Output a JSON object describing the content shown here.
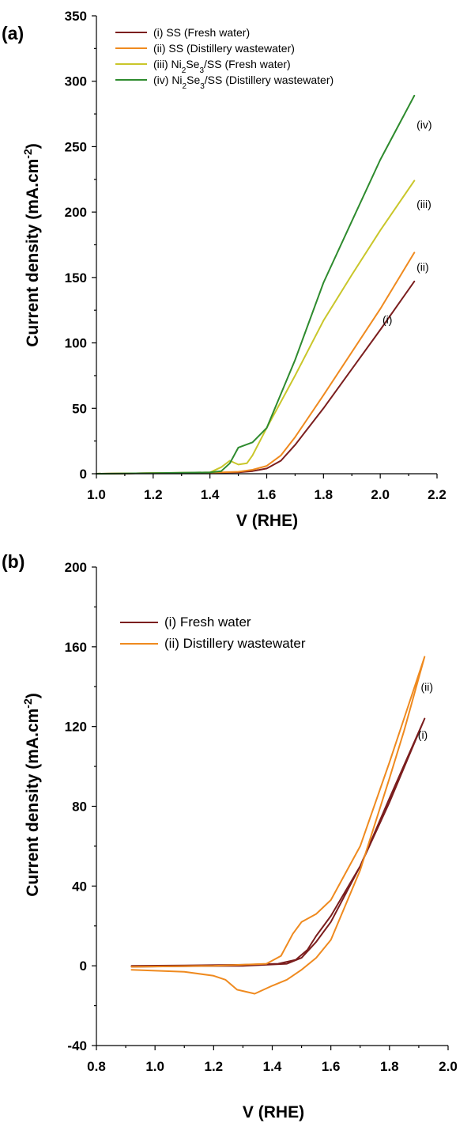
{
  "chart_data": [
    {
      "panel": "(a)",
      "type": "line",
      "xlabel": "V (RHE)",
      "ylabel": "Current density (mA.cm-2)",
      "xlim": [
        1.0,
        2.2
      ],
      "ylim": [
        0,
        350
      ],
      "xticks": [
        "1.0",
        "1.2",
        "1.4",
        "1.6",
        "1.8",
        "2.0",
        "2.2"
      ],
      "yticks": [
        "0",
        "50",
        "100",
        "150",
        "200",
        "250",
        "300",
        "350"
      ],
      "legend_position": "top-left",
      "series": [
        {
          "name": "(i) SS (Fresh water)",
          "tag": "(i)",
          "color": "#7b1e1e",
          "x": [
            1.0,
            1.2,
            1.4,
            1.5,
            1.55,
            1.6,
            1.65,
            1.7,
            1.8,
            1.9,
            2.0,
            2.12
          ],
          "y": [
            0,
            0.5,
            0.8,
            1,
            2,
            4,
            10,
            22,
            50,
            80,
            110,
            147
          ]
        },
        {
          "name": "(ii) SS (Distillery wastewater)",
          "tag": "(ii)",
          "color": "#ef8a1f",
          "x": [
            1.0,
            1.2,
            1.4,
            1.5,
            1.55,
            1.6,
            1.65,
            1.7,
            1.8,
            1.9,
            2.0,
            2.12
          ],
          "y": [
            0,
            0.5,
            0.8,
            1.5,
            3,
            6,
            14,
            28,
            60,
            93,
            126,
            169
          ]
        },
        {
          "name": "(iii) Ni_2Se_3/SS (Fresh water)",
          "tag": "(iii)",
          "color": "#c9c62a",
          "x": [
            1.0,
            1.2,
            1.4,
            1.44,
            1.47,
            1.5,
            1.53,
            1.55,
            1.6,
            1.7,
            1.8,
            1.9,
            2.0,
            2.12
          ],
          "y": [
            0,
            0.5,
            1,
            5,
            10,
            7,
            8,
            14,
            35,
            75,
            117,
            152,
            186,
            224
          ]
        },
        {
          "name": "(iv) Ni_2Se_3/SS (Distillery wastewater)",
          "tag": "(iv)",
          "color": "#2e8b2e",
          "x": [
            1.0,
            1.2,
            1.4,
            1.44,
            1.47,
            1.5,
            1.55,
            1.6,
            1.7,
            1.8,
            1.9,
            2.0,
            2.12
          ],
          "y": [
            0,
            0.5,
            1,
            2,
            8,
            20,
            24,
            35,
            87,
            146,
            193,
            240,
            289
          ]
        }
      ]
    },
    {
      "panel": "(b)",
      "type": "line",
      "xlabel": "V (RHE)",
      "ylabel": "Current density (mA.cm-2)",
      "xlim": [
        0.8,
        2.0
      ],
      "ylim": [
        -40,
        200
      ],
      "xticks": [
        "0.8",
        "1.0",
        "1.2",
        "1.4",
        "1.6",
        "1.8",
        "2.0"
      ],
      "yticks": [
        "-40",
        "0",
        "40",
        "80",
        "120",
        "160",
        "200"
      ],
      "legend_position": "top-left",
      "series": [
        {
          "name": "(i) Fresh water",
          "tag": "(i)",
          "color": "#7b1e1e",
          "x": [
            0.92,
            1.1,
            1.3,
            1.42,
            1.48,
            1.52,
            1.55,
            1.6,
            1.7,
            1.8,
            1.92,
            1.8,
            1.7,
            1.6,
            1.55,
            1.5,
            1.45,
            1.3,
            1.1,
            0.92
          ],
          "y": [
            0,
            0.2,
            0.5,
            1,
            3,
            8,
            15,
            25,
            50,
            82,
            124,
            84,
            50,
            22,
            12,
            4,
            1,
            0,
            -0.2,
            -0.5
          ]
        },
        {
          "name": "(ii) Distillery wastewater",
          "tag": "(ii)",
          "color": "#ef8a1f",
          "x": [
            0.92,
            1.2,
            1.38,
            1.43,
            1.47,
            1.5,
            1.55,
            1.6,
            1.7,
            1.8,
            1.92,
            1.85,
            1.8,
            1.7,
            1.6,
            1.55,
            1.5,
            1.45,
            1.4,
            1.34,
            1.28,
            1.24,
            1.2,
            1.1,
            0.92
          ],
          "y": [
            -0.5,
            0,
            1,
            5,
            16,
            22,
            26,
            33,
            60,
            102,
            155,
            118,
            94,
            48,
            13,
            4,
            -2,
            -7,
            -10,
            -14,
            -12,
            -7,
            -5,
            -3,
            -2
          ]
        }
      ]
    }
  ]
}
